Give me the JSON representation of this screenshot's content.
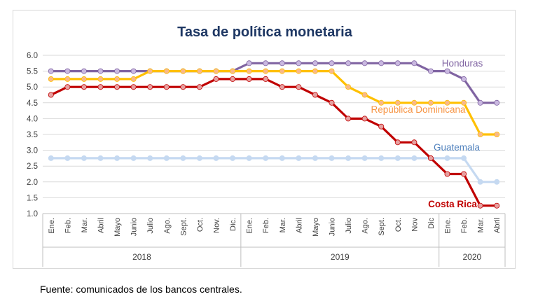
{
  "source_note": "Fuente: comunicados de los bancos centrales.",
  "chart_data": {
    "type": "line",
    "title": "Tasa de política monetaria",
    "xlabel": "",
    "ylabel": "",
    "ylim": [
      1.0,
      6.0
    ],
    "yticks": [
      "6.0",
      "5.5",
      "5.0",
      "4.5",
      "4.0",
      "3.5",
      "3.0",
      "2.5",
      "2.0",
      "1.5",
      "1.0"
    ],
    "grid": true,
    "legend": "inline labels",
    "categories": [
      "Ene.",
      "Feb.",
      "Mar.",
      "Abril",
      "Mayo",
      "Junio",
      "Julio",
      "Ago.",
      "Sept.",
      "Oct.",
      "Nov.",
      "Dic.",
      "Ene.",
      "Feb.",
      "Mar.",
      "Abril",
      "Mayo",
      "Junio",
      "Julio",
      "Ago.",
      "Sept.",
      "Oct.",
      "Nov",
      "Dic",
      "Ene.",
      "Feb.",
      "Mar.",
      "Abril"
    ],
    "year_groups": [
      {
        "label": "2018",
        "start": 0,
        "end": 11
      },
      {
        "label": "2019",
        "start": 12,
        "end": 23
      },
      {
        "label": "2020",
        "start": 24,
        "end": 27
      }
    ],
    "series": [
      {
        "name": "Honduras",
        "color": "#8064a2",
        "marker": "#c9b8e0",
        "values": [
          5.5,
          5.5,
          5.5,
          5.5,
          5.5,
          5.5,
          5.5,
          5.5,
          5.5,
          5.5,
          5.5,
          5.5,
          5.75,
          5.75,
          5.75,
          5.75,
          5.75,
          5.75,
          5.75,
          5.75,
          5.75,
          5.75,
          5.75,
          5.5,
          5.5,
          5.25,
          4.5,
          4.5
        ]
      },
      {
        "name": "República Dominicana",
        "color": "#ffc000",
        "marker": "#f9b989",
        "label_color": "#f79646",
        "values": [
          5.25,
          5.25,
          5.25,
          5.25,
          5.25,
          5.25,
          5.5,
          5.5,
          5.5,
          5.5,
          5.5,
          5.5,
          5.5,
          5.5,
          5.5,
          5.5,
          5.5,
          5.5,
          5.0,
          4.75,
          4.5,
          4.5,
          4.5,
          4.5,
          4.5,
          4.5,
          3.5,
          3.5
        ]
      },
      {
        "name": "Guatemala",
        "color": "#c5d9f1",
        "marker": "#c5d9f1",
        "label_color": "#4f81bd",
        "values": [
          2.75,
          2.75,
          2.75,
          2.75,
          2.75,
          2.75,
          2.75,
          2.75,
          2.75,
          2.75,
          2.75,
          2.75,
          2.75,
          2.75,
          2.75,
          2.75,
          2.75,
          2.75,
          2.75,
          2.75,
          2.75,
          2.75,
          2.75,
          2.75,
          2.75,
          2.75,
          2.0,
          2.0
        ]
      },
      {
        "name": "Costa Rica",
        "color": "#c00000",
        "marker": "#e6a0a0",
        "values": [
          4.75,
          5.0,
          5.0,
          5.0,
          5.0,
          5.0,
          5.0,
          5.0,
          5.0,
          5.0,
          5.25,
          5.25,
          5.25,
          5.25,
          5.0,
          5.0,
          4.75,
          4.5,
          4.0,
          4.0,
          3.75,
          3.25,
          3.25,
          2.75,
          2.25,
          2.25,
          1.25,
          1.25
        ]
      }
    ]
  }
}
